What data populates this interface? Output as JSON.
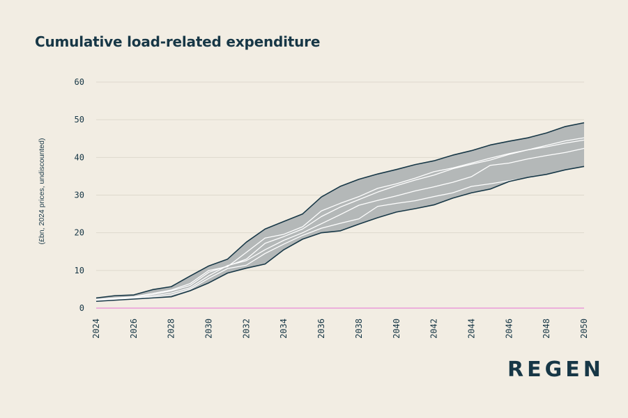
{
  "chart_data": {
    "type": "area",
    "title": "Cumulative load-related expenditure",
    "xlabel": "",
    "ylabel": "(£bn, 2024 prices, undiscounted)",
    "ylim": [
      0,
      60
    ],
    "xlim": [
      2024,
      2050
    ],
    "yticks": [
      0,
      10,
      20,
      30,
      40,
      50,
      60
    ],
    "xticks": [
      2024,
      2026,
      2028,
      2030,
      2032,
      2034,
      2036,
      2038,
      2040,
      2042,
      2044,
      2046,
      2048,
      2050
    ],
    "grid": true,
    "colors": {
      "band": "#b4b8b8",
      "band_edge": "#173746",
      "scenario_lines": "#ffffff",
      "zero_line": "#e88ad6",
      "grid": "#ddd8cd",
      "text": "#173746",
      "background": "#f2ede3"
    },
    "x": [
      2024,
      2025,
      2026,
      2027,
      2028,
      2029,
      2030,
      2031,
      2032,
      2033,
      2034,
      2035,
      2036,
      2037,
      2038,
      2039,
      2040,
      2041,
      2042,
      2043,
      2044,
      2045,
      2046,
      2047,
      2048,
      2049,
      2050
    ],
    "band_upper": [
      2.7,
      3.3,
      3.5,
      4.9,
      5.7,
      8.5,
      11.2,
      13.0,
      17.5,
      21.0,
      23.0,
      25.0,
      29.5,
      32.3,
      34.2,
      35.6,
      36.8,
      38.1,
      39.1,
      40.6,
      41.8,
      43.3,
      44.3,
      45.2,
      46.5,
      48.2,
      49.2
    ],
    "band_lower": [
      1.8,
      2.1,
      2.4,
      2.7,
      3.0,
      4.6,
      6.7,
      9.3,
      10.6,
      11.7,
      15.5,
      18.3,
      20.0,
      20.5,
      22.3,
      24.0,
      25.5,
      26.4,
      27.4,
      29.2,
      30.6,
      31.6,
      33.6,
      34.7,
      35.5,
      36.7,
      37.6
    ],
    "series": [
      {
        "values": [
          2.3,
          2.7,
          3.0,
          3.9,
          4.8,
          6.5,
          10.0,
          11.0,
          14.8,
          18.6,
          19.6,
          21.6,
          25.8,
          27.8,
          29.6,
          31.8,
          33.0,
          34.5,
          36.2,
          37.2,
          38.5,
          39.8,
          41.0,
          42.0,
          43.2,
          44.4,
          45.2
        ]
      },
      {
        "values": [
          2.2,
          2.6,
          2.9,
          3.6,
          4.6,
          6.0,
          9.5,
          11.2,
          13.0,
          17.2,
          19.0,
          21.0,
          24.3,
          26.8,
          28.8,
          30.8,
          32.5,
          34.0,
          35.3,
          37.0,
          38.2,
          39.3,
          40.8,
          42.0,
          42.8,
          43.8,
          44.6
        ]
      },
      {
        "values": [
          2.0,
          2.4,
          2.7,
          3.2,
          4.0,
          5.4,
          8.6,
          11.3,
          12.6,
          15.5,
          18.0,
          20.0,
          22.4,
          24.8,
          27.3,
          28.6,
          29.8,
          31.1,
          32.2,
          33.4,
          34.9,
          37.9,
          38.5,
          39.6,
          40.5,
          41.3,
          42.4
        ]
      },
      {
        "values": [
          1.9,
          2.2,
          2.5,
          2.9,
          3.5,
          5.0,
          7.9,
          10.5,
          11.4,
          14.5,
          17.0,
          19.3,
          21.2,
          22.5,
          23.7,
          27.0,
          27.8,
          28.5,
          29.6,
          30.6,
          32.3,
          33.0,
          33.8,
          34.6,
          35.5,
          36.6,
          37.6
        ]
      }
    ]
  },
  "brand": {
    "logo_text": "REGEN"
  }
}
